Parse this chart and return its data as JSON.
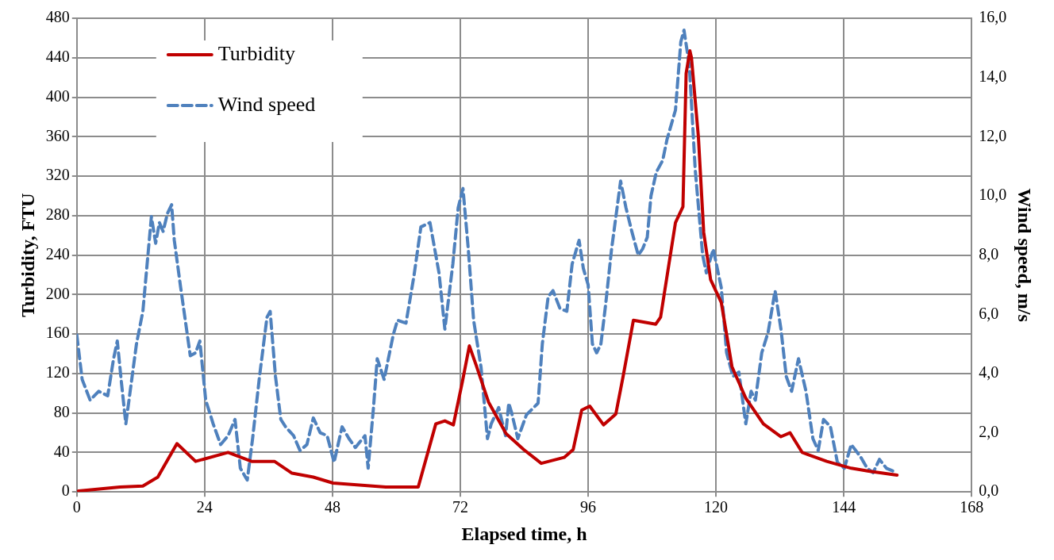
{
  "chart_data": {
    "type": "line",
    "xlabel": "Elapsed time, h",
    "ylabel": "Turbidity, FTU",
    "y2label": "Wind speed, m/s",
    "xlim": [
      0,
      168
    ],
    "xticks": [
      0,
      24,
      48,
      72,
      96,
      120,
      144,
      168
    ],
    "ylim": [
      0,
      480
    ],
    "yticks": [
      0,
      40,
      80,
      120,
      160,
      200,
      240,
      280,
      320,
      360,
      400,
      440,
      480
    ],
    "y2lim": [
      0,
      16
    ],
    "y2ticks": [
      {
        "value": 0,
        "label": "0,0"
      },
      {
        "value": 2,
        "label": "2,0"
      },
      {
        "value": 4,
        "label": "4,0"
      },
      {
        "value": 6,
        "label": "6,0"
      },
      {
        "value": 8,
        "label": "8,0"
      },
      {
        "value": 10,
        "label": "10,0"
      },
      {
        "value": 12,
        "label": "12,0"
      },
      {
        "value": 14,
        "label": "14,0"
      },
      {
        "value": 16,
        "label": "16,0"
      }
    ],
    "grid": true,
    "legend": "top left",
    "marker": "none",
    "series": [
      {
        "name": "Turbidity",
        "color": "#c00000",
        "line_style": "solid",
        "x": [
          0.3,
          8.1,
          12.4,
          15.2,
          18.8,
          22.3,
          28.4,
          32.8,
          37.1,
          40.4,
          44.4,
          48.1,
          58.0,
          64.1,
          67.4,
          69.1,
          70.7,
          72.4,
          73.7,
          75.0,
          77.3,
          80.6,
          83.9,
          87.2,
          91.5,
          93.2,
          94.8,
          96.3,
          98.9,
          101.2,
          102.6,
          104.5,
          108.7,
          109.6,
          112.4,
          113.8,
          114.4,
          115.1,
          115.4,
          116.7,
          117.7,
          119.0,
          121.0,
          123.0,
          125.6,
          128.9,
          132.2,
          133.9,
          136.2,
          140.8,
          145.4,
          148.7,
          154.0
        ],
        "values": [
          1,
          5,
          6,
          15,
          49,
          31,
          40,
          31,
          31,
          19,
          15,
          9,
          5,
          5,
          69,
          72,
          68,
          112,
          148,
          128,
          91,
          59,
          43,
          29,
          35,
          43,
          83,
          87,
          68,
          79,
          118,
          174,
          170,
          177,
          273,
          289,
          424,
          447,
          440,
          360,
          263,
          215,
          192,
          127,
          95,
          69,
          56,
          60,
          40,
          31,
          24,
          21,
          17
        ]
      },
      {
        "name": "Wind speed",
        "color": "#4f81bd",
        "line_style": "dashed",
        "axis": "y2",
        "x": [
          0,
          1,
          2.5,
          4.1,
          5.8,
          6.9,
          7.6,
          8.4,
          9.2,
          10.2,
          11.2,
          12.4,
          13.2,
          14.0,
          14.8,
          15.5,
          16.2,
          17.0,
          17.8,
          18.3,
          19.5,
          20.6,
          21.3,
          22.3,
          23.1,
          24.2,
          25.6,
          27.0,
          28.4,
          29.7,
          30.7,
          32.0,
          33.0,
          34.3,
          35.7,
          36.3,
          37.3,
          38.3,
          39.2,
          40.7,
          41.9,
          43.2,
          44.4,
          45.7,
          47.0,
          48.3,
          49.8,
          51.1,
          52.3,
          54.1,
          54.7,
          55.7,
          56.4,
          57.7,
          59.4,
          60.2,
          61.8,
          63.3,
          64.6,
          66.3,
          68.0,
          69.1,
          70.6,
          71.6,
          72.5,
          73.5,
          74.5,
          75.9,
          77.1,
          77.8,
          79.2,
          80.5,
          81.1,
          81.6,
          82.8,
          84.4,
          86.6,
          87.4,
          88.5,
          89.4,
          90.7,
          92.0,
          93.0,
          94.3,
          95.1,
          96.0,
          96.8,
          97.6,
          98.4,
          99.3,
          100.4,
          102.1,
          103.1,
          104.2,
          105.4,
          106.2,
          107.1,
          107.8,
          108.8,
          110.0,
          110.8,
          112.4,
          113.4,
          114.0,
          115.0,
          116.1,
          117.5,
          118.2,
          119.5,
          121.0,
          122.0,
          123.2,
          124.3,
          125.6,
          126.6,
          127.4,
          128.6,
          129.8,
          131.1,
          132.2,
          133.2,
          134.2,
          135.5,
          136.9,
          138.2,
          139.2,
          140.2,
          141.5,
          142.8,
          144.1,
          145.4,
          147.1,
          148.4,
          149.5,
          150.7,
          152.0,
          154.0
        ],
        "values": [
          5.3,
          3.8,
          3.1,
          3.4,
          3.25,
          4.5,
          5.1,
          3.65,
          2.3,
          3.65,
          5.0,
          6.1,
          7.7,
          9.3,
          8.4,
          9.1,
          8.8,
          9.4,
          9.7,
          8.5,
          6.9,
          5.5,
          4.6,
          4.7,
          5.1,
          3.1,
          2.3,
          1.6,
          1.9,
          2.45,
          0.8,
          0.4,
          1.8,
          3.9,
          5.9,
          6.1,
          3.9,
          2.45,
          2.2,
          1.9,
          1.4,
          1.6,
          2.5,
          2.0,
          1.9,
          1.0,
          2.2,
          1.8,
          1.5,
          1.9,
          0.8,
          2.85,
          4.5,
          3.8,
          5.3,
          5.8,
          5.7,
          7.3,
          8.95,
          9.1,
          7.4,
          5.5,
          7.7,
          9.6,
          10.25,
          8.2,
          5.8,
          4.2,
          1.8,
          2.3,
          2.85,
          1.9,
          3.0,
          2.7,
          1.8,
          2.6,
          3.0,
          5.0,
          6.6,
          6.8,
          6.2,
          6.1,
          7.7,
          8.5,
          7.55,
          7.0,
          5.0,
          4.7,
          5.0,
          6.35,
          8.2,
          10.5,
          9.6,
          8.8,
          8.0,
          8.2,
          8.6,
          10.0,
          10.8,
          11.2,
          11.9,
          12.9,
          15.2,
          15.6,
          14.4,
          10.9,
          8.0,
          7.4,
          8.2,
          6.9,
          4.7,
          3.9,
          4.05,
          2.3,
          3.4,
          3.1,
          4.7,
          5.4,
          6.8,
          5.5,
          3.9,
          3.4,
          4.5,
          3.4,
          1.8,
          1.4,
          2.45,
          2.2,
          1.0,
          0.8,
          1.6,
          1.2,
          0.8,
          0.65,
          1.1,
          0.8,
          0.65
        ]
      }
    ]
  }
}
